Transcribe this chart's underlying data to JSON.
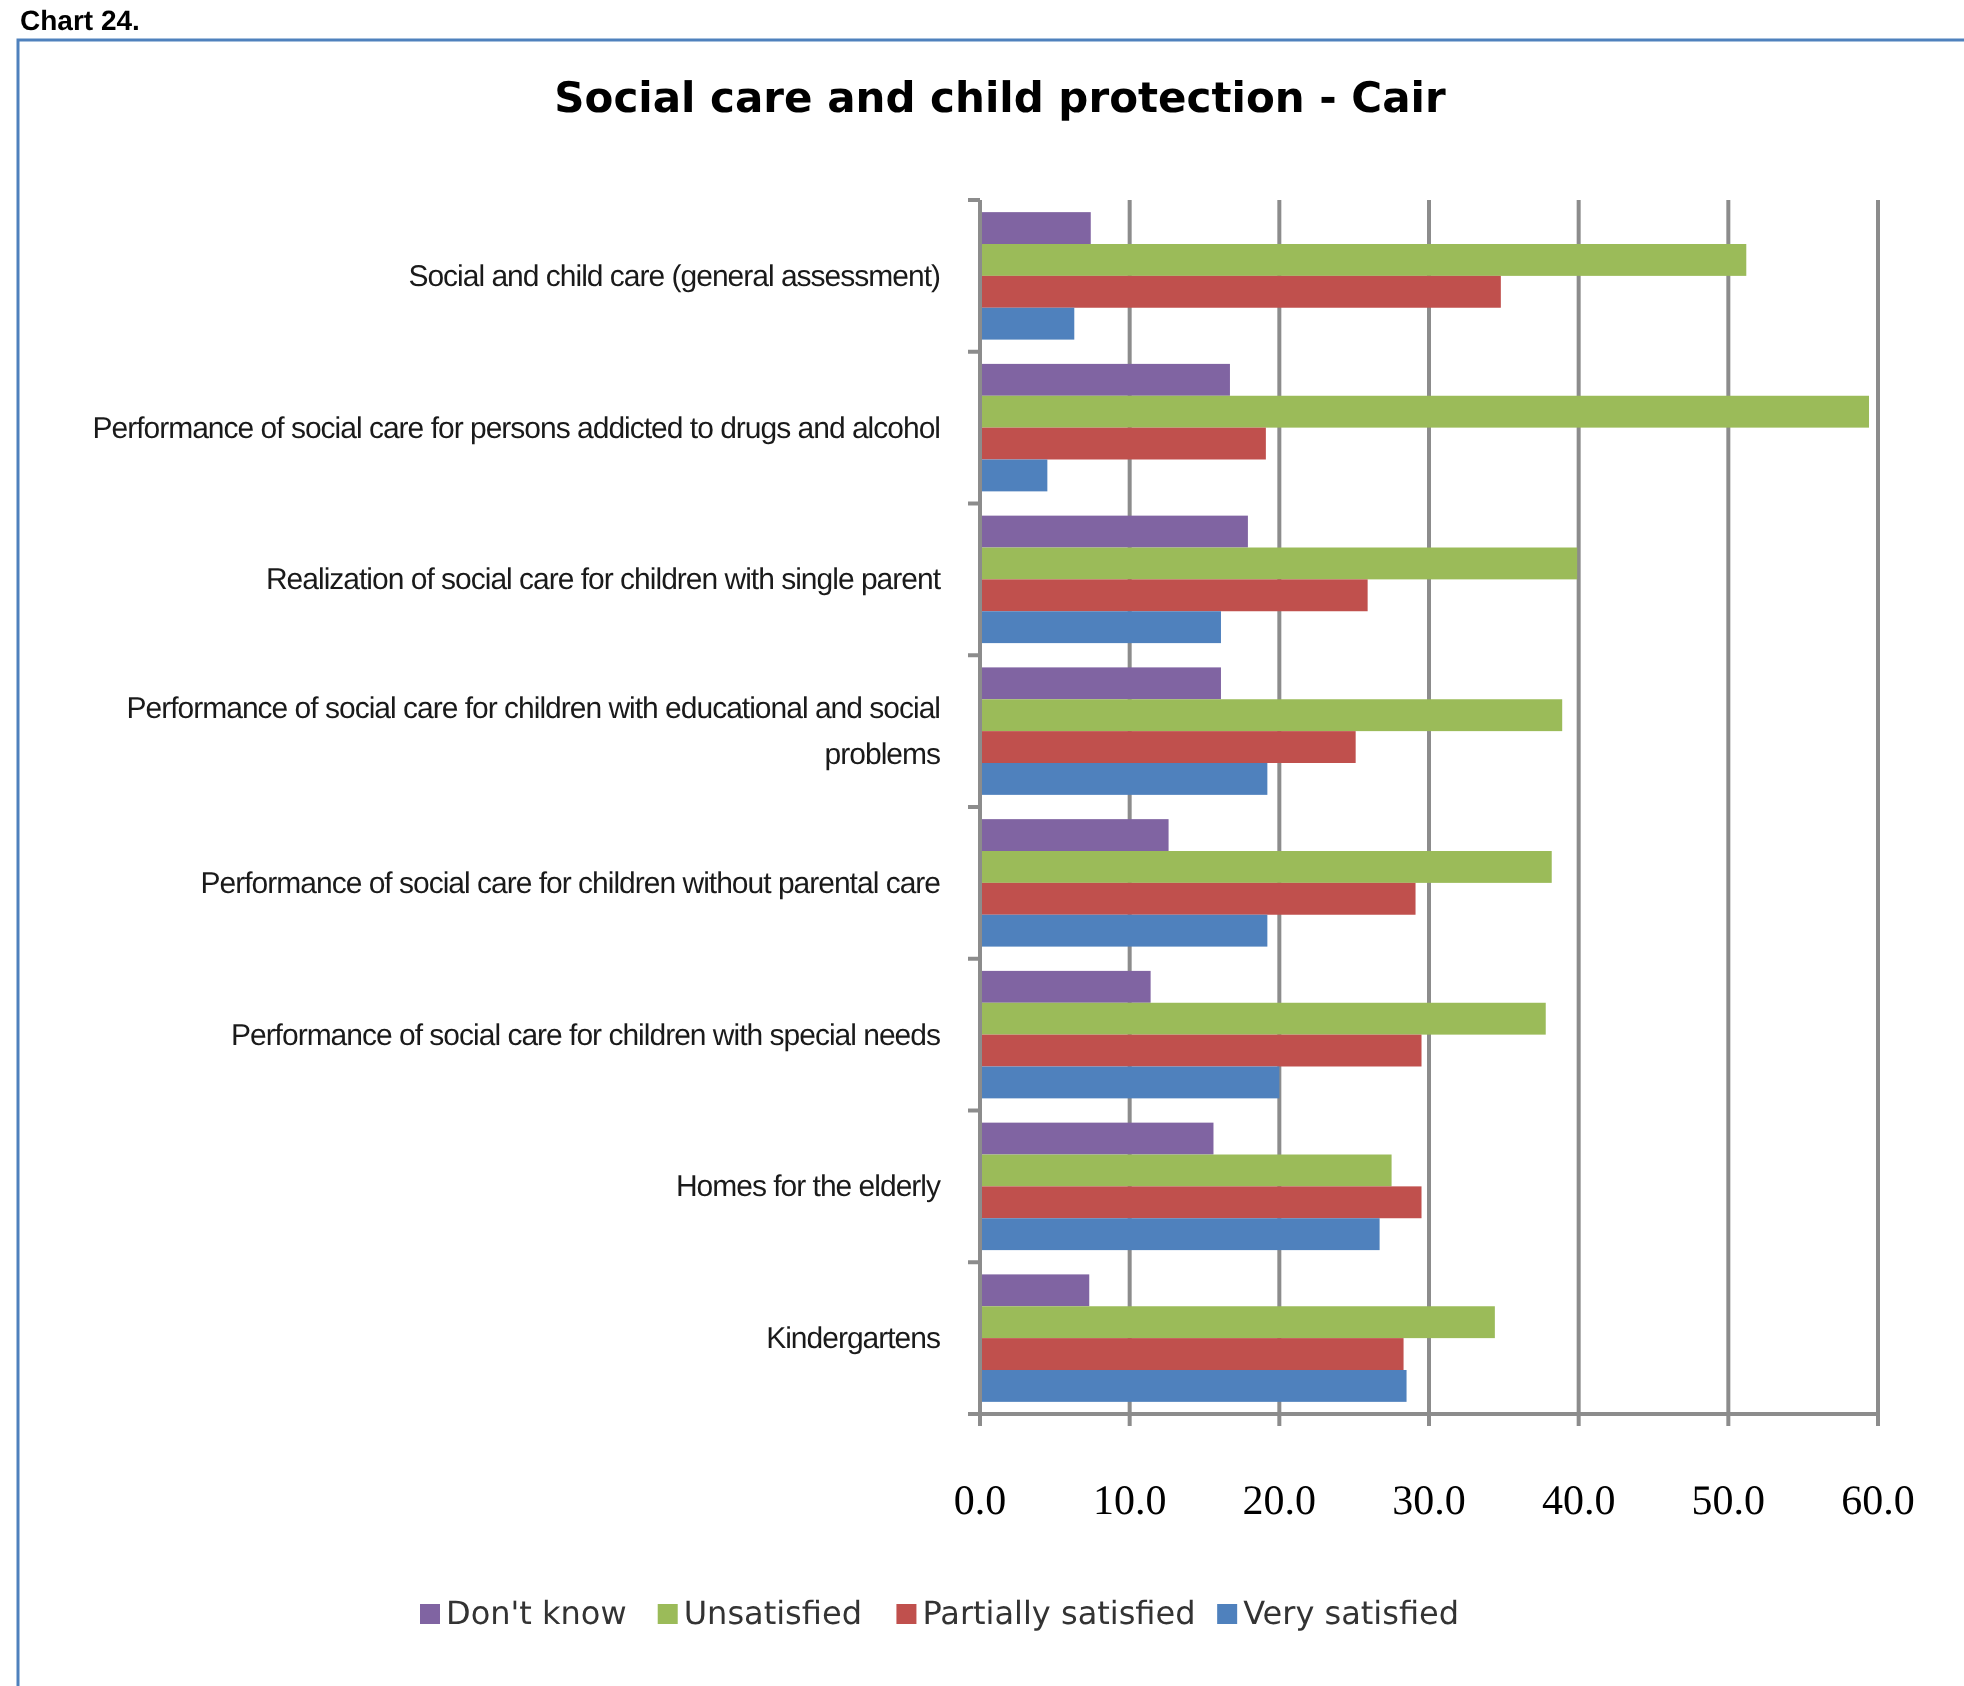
{
  "chart_data": {
    "type": "bar",
    "orientation": "horizontal",
    "title": "Social care and child protection - Cair",
    "annotations": [
      "Chart 24."
    ],
    "categories": [
      "Social and child care (general assessment)",
      "Performance of social care for persons addicted to drugs and alcohol",
      "Realization of social care for children with single parent",
      "Performance of social care for children with educational and social problems",
      "Performance of social care for children without parental care",
      "Performance of social care for children with special needs",
      "Homes for the elderly",
      "Kindergartens"
    ],
    "series": [
      {
        "name": "Don't know",
        "color": "#8064a2",
        "values": [
          7.4,
          16.7,
          17.9,
          16.1,
          12.6,
          11.4,
          15.6,
          7.3
        ]
      },
      {
        "name": "Unsatisfied",
        "color": "#9bbb59",
        "values": [
          51.2,
          59.4,
          39.9,
          38.9,
          38.2,
          37.8,
          27.5,
          34.4
        ]
      },
      {
        "name": "Partially satisfied",
        "color": "#c0504d",
        "values": [
          34.8,
          19.1,
          25.9,
          25.1,
          29.1,
          29.5,
          29.5,
          28.3
        ]
      },
      {
        "name": "Very satisfied",
        "color": "#4f81bd",
        "values": [
          6.3,
          4.5,
          16.1,
          19.2,
          19.2,
          20.0,
          26.7,
          28.5
        ]
      }
    ],
    "xlim": [
      0,
      60
    ],
    "xticks": [
      {
        "value": 0,
        "label": "0.0"
      },
      {
        "value": 10,
        "label": "10.0"
      },
      {
        "value": 20,
        "label": "20.0"
      },
      {
        "value": 30,
        "label": "30.0"
      },
      {
        "value": 40,
        "label": "40.0"
      },
      {
        "value": 50,
        "label": "50.0"
      },
      {
        "value": 60,
        "label": "60.0"
      }
    ],
    "grid": "x",
    "legend": "bottom"
  }
}
